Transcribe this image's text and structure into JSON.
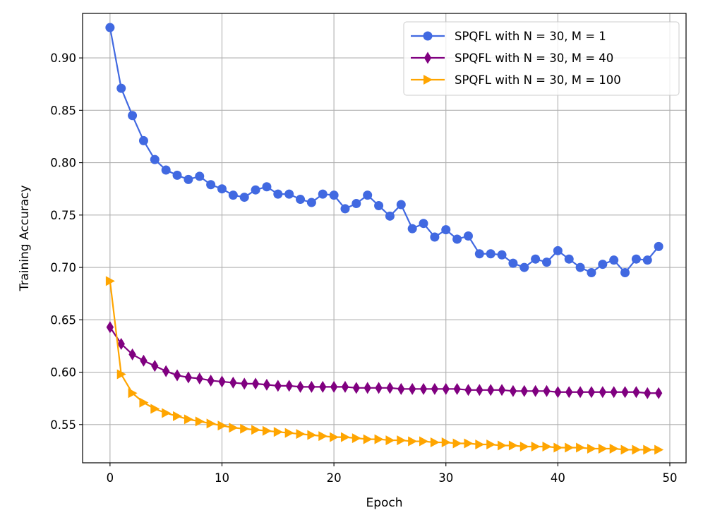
{
  "chart_data": {
    "type": "line",
    "xlabel": "Epoch",
    "ylabel": "Training Accuracy",
    "xlim": [
      -2.45,
      51.45
    ],
    "ylim": [
      0.5135,
      0.9425
    ],
    "xticks": [
      0,
      10,
      20,
      30,
      40,
      50
    ],
    "yticks": [
      0.55,
      0.6,
      0.65,
      0.7,
      0.75,
      0.8,
      0.85,
      0.9
    ],
    "ytick_labels": [
      "0.55",
      "0.60",
      "0.65",
      "0.70",
      "0.75",
      "0.80",
      "0.85",
      "0.90"
    ],
    "grid": true,
    "legend_position": "top-right",
    "x": [
      0,
      1,
      2,
      3,
      4,
      5,
      6,
      7,
      8,
      9,
      10,
      11,
      12,
      13,
      14,
      15,
      16,
      17,
      18,
      19,
      20,
      21,
      22,
      23,
      24,
      25,
      26,
      27,
      28,
      29,
      30,
      31,
      32,
      33,
      34,
      35,
      36,
      37,
      38,
      39,
      40,
      41,
      42,
      43,
      44,
      45,
      46,
      47,
      48,
      49
    ],
    "series": [
      {
        "name": "SPQFL with N = 30, M = 1",
        "color": "#4169E1",
        "marker": "circle",
        "values": [
          0.929,
          0.871,
          0.845,
          0.821,
          0.803,
          0.793,
          0.788,
          0.784,
          0.787,
          0.779,
          0.775,
          0.769,
          0.767,
          0.774,
          0.777,
          0.77,
          0.77,
          0.765,
          0.762,
          0.77,
          0.769,
          0.756,
          0.761,
          0.769,
          0.759,
          0.749,
          0.76,
          0.737,
          0.742,
          0.729,
          0.736,
          0.727,
          0.73,
          0.713,
          0.713,
          0.712,
          0.704,
          0.7,
          0.708,
          0.705,
          0.716,
          0.708,
          0.7,
          0.695,
          0.703,
          0.707,
          0.695,
          0.708,
          0.707,
          0.72
        ]
      },
      {
        "name": "SPQFL with N = 30, M = 40",
        "color": "#800080",
        "marker": "thin_diamond",
        "values": [
          0.643,
          0.627,
          0.617,
          0.611,
          0.606,
          0.601,
          0.597,
          0.595,
          0.594,
          0.592,
          0.591,
          0.59,
          0.589,
          0.589,
          0.588,
          0.587,
          0.587,
          0.586,
          0.586,
          0.586,
          0.586,
          0.586,
          0.585,
          0.585,
          0.585,
          0.585,
          0.584,
          0.584,
          0.584,
          0.584,
          0.584,
          0.584,
          0.583,
          0.583,
          0.583,
          0.583,
          0.582,
          0.582,
          0.582,
          0.582,
          0.581,
          0.581,
          0.581,
          0.581,
          0.581,
          0.581,
          0.581,
          0.581,
          0.58,
          0.58
        ]
      },
      {
        "name": "SPQFL with N = 30, M = 100",
        "color": "#FFA500",
        "marker": "triangle_right",
        "values": [
          0.687,
          0.598,
          0.58,
          0.571,
          0.565,
          0.561,
          0.558,
          0.555,
          0.553,
          0.551,
          0.549,
          0.547,
          0.546,
          0.545,
          0.544,
          0.543,
          0.542,
          0.541,
          0.54,
          0.539,
          0.538,
          0.538,
          0.537,
          0.536,
          0.536,
          0.535,
          0.535,
          0.534,
          0.534,
          0.533,
          0.533,
          0.532,
          0.532,
          0.531,
          0.531,
          0.53,
          0.53,
          0.529,
          0.529,
          0.529,
          0.528,
          0.528,
          0.528,
          0.527,
          0.527,
          0.527,
          0.526,
          0.526,
          0.526,
          0.526
        ]
      }
    ]
  }
}
